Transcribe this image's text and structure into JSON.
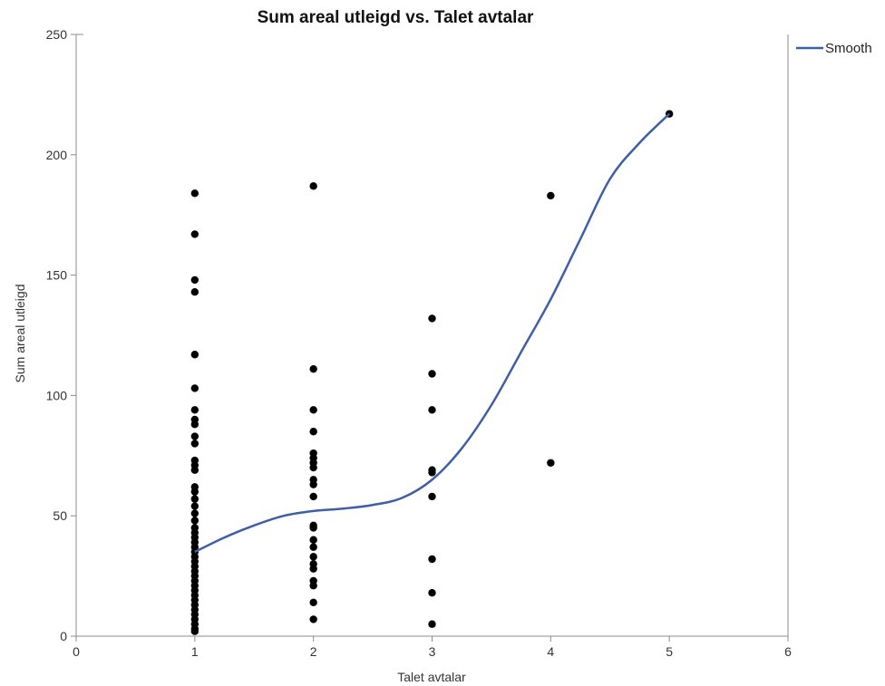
{
  "chart_data": {
    "type": "scatter",
    "title": "Sum areal utleigd vs. Talet avtalar",
    "xlabel": "Talet avtalar",
    "ylabel": "Sum areal utleigd",
    "xlim": [
      0,
      6
    ],
    "ylim": [
      0,
      250
    ],
    "xticks": [
      "0",
      "1",
      "2",
      "3",
      "4",
      "5",
      "6"
    ],
    "yticks": [
      "0",
      "50",
      "100",
      "150",
      "200",
      "250"
    ],
    "grid": false,
    "legend_position": "top-right",
    "colors": {
      "points": "#000000",
      "smooth": "#3f5ea8",
      "axis": "#8c8c8c"
    },
    "points": [
      {
        "x": 1,
        "y": 184
      },
      {
        "x": 1,
        "y": 167
      },
      {
        "x": 1,
        "y": 148
      },
      {
        "x": 1,
        "y": 143
      },
      {
        "x": 1,
        "y": 117
      },
      {
        "x": 1,
        "y": 103
      },
      {
        "x": 1,
        "y": 94
      },
      {
        "x": 1,
        "y": 90
      },
      {
        "x": 1,
        "y": 88
      },
      {
        "x": 1,
        "y": 83
      },
      {
        "x": 1,
        "y": 80
      },
      {
        "x": 1,
        "y": 73
      },
      {
        "x": 1,
        "y": 71
      },
      {
        "x": 1,
        "y": 69
      },
      {
        "x": 1,
        "y": 62
      },
      {
        "x": 1,
        "y": 60
      },
      {
        "x": 1,
        "y": 57
      },
      {
        "x": 1,
        "y": 54
      },
      {
        "x": 1,
        "y": 51
      },
      {
        "x": 1,
        "y": 48
      },
      {
        "x": 1,
        "y": 45
      },
      {
        "x": 1,
        "y": 43
      },
      {
        "x": 1,
        "y": 41
      },
      {
        "x": 1,
        "y": 39
      },
      {
        "x": 1,
        "y": 37
      },
      {
        "x": 1,
        "y": 35
      },
      {
        "x": 1,
        "y": 33
      },
      {
        "x": 1,
        "y": 31
      },
      {
        "x": 1,
        "y": 29
      },
      {
        "x": 1,
        "y": 27
      },
      {
        "x": 1,
        "y": 25
      },
      {
        "x": 1,
        "y": 23
      },
      {
        "x": 1,
        "y": 21
      },
      {
        "x": 1,
        "y": 19
      },
      {
        "x": 1,
        "y": 17
      },
      {
        "x": 1,
        "y": 15
      },
      {
        "x": 1,
        "y": 13
      },
      {
        "x": 1,
        "y": 11
      },
      {
        "x": 1,
        "y": 9
      },
      {
        "x": 1,
        "y": 7
      },
      {
        "x": 1,
        "y": 5
      },
      {
        "x": 1,
        "y": 3
      },
      {
        "x": 1,
        "y": 2
      },
      {
        "x": 2,
        "y": 187
      },
      {
        "x": 2,
        "y": 111
      },
      {
        "x": 2,
        "y": 94
      },
      {
        "x": 2,
        "y": 85
      },
      {
        "x": 2,
        "y": 76
      },
      {
        "x": 2,
        "y": 74
      },
      {
        "x": 2,
        "y": 72
      },
      {
        "x": 2,
        "y": 70
      },
      {
        "x": 2,
        "y": 65
      },
      {
        "x": 2,
        "y": 63
      },
      {
        "x": 2,
        "y": 58
      },
      {
        "x": 2,
        "y": 46
      },
      {
        "x": 2,
        "y": 45
      },
      {
        "x": 2,
        "y": 40
      },
      {
        "x": 2,
        "y": 37
      },
      {
        "x": 2,
        "y": 33
      },
      {
        "x": 2,
        "y": 30
      },
      {
        "x": 2,
        "y": 28
      },
      {
        "x": 2,
        "y": 23
      },
      {
        "x": 2,
        "y": 21
      },
      {
        "x": 2,
        "y": 14
      },
      {
        "x": 2,
        "y": 7
      },
      {
        "x": 3,
        "y": 132
      },
      {
        "x": 3,
        "y": 109
      },
      {
        "x": 3,
        "y": 94
      },
      {
        "x": 3,
        "y": 69
      },
      {
        "x": 3,
        "y": 68
      },
      {
        "x": 3,
        "y": 58
      },
      {
        "x": 3,
        "y": 32
      },
      {
        "x": 3,
        "y": 18
      },
      {
        "x": 3,
        "y": 5
      },
      {
        "x": 4,
        "y": 183
      },
      {
        "x": 4,
        "y": 72
      },
      {
        "x": 5,
        "y": 217
      }
    ],
    "series": [
      {
        "name": "Smooth",
        "type": "line",
        "x": [
          1,
          1.25,
          1.5,
          1.75,
          2,
          2.25,
          2.5,
          2.75,
          3,
          3.25,
          3.5,
          3.75,
          4,
          4.25,
          4.5,
          4.75,
          5
        ],
        "y": [
          35,
          41,
          46,
          50,
          52,
          53,
          54.5,
          57.5,
          65,
          78,
          96,
          118,
          140,
          165,
          190,
          205,
          217
        ]
      }
    ]
  }
}
